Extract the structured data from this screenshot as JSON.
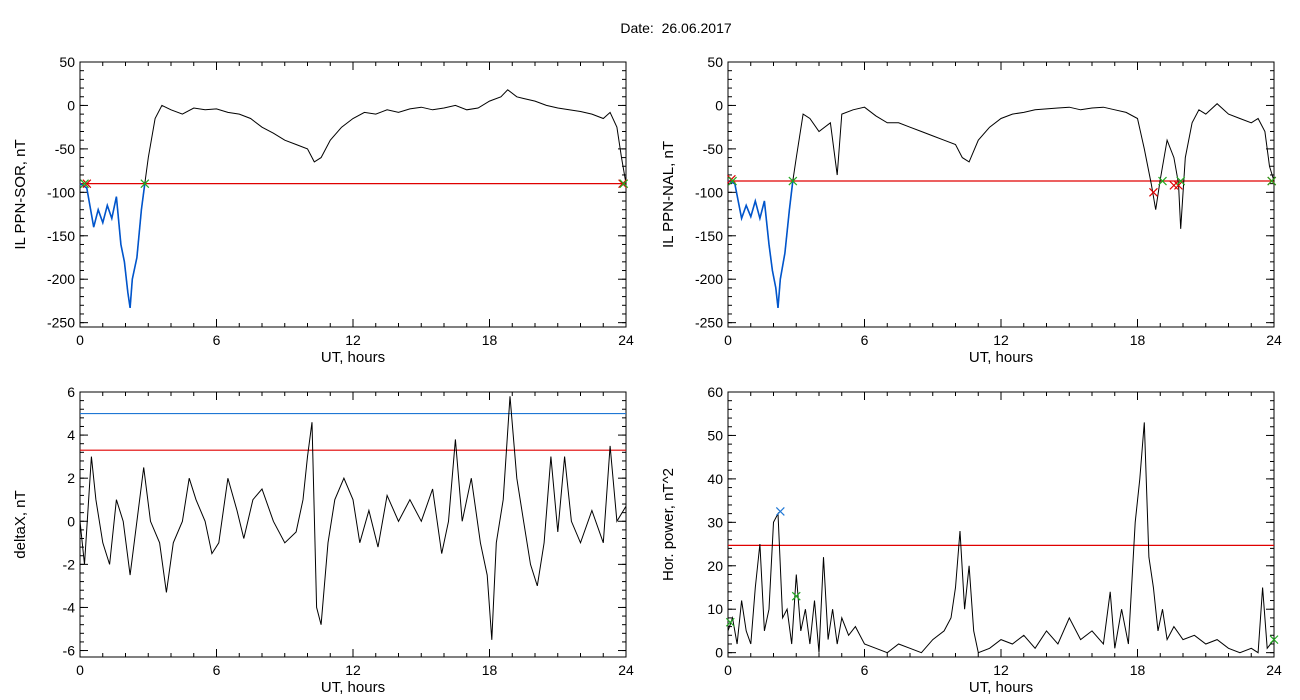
{
  "figure": {
    "title": "Date:  26.06.2017",
    "colors": {
      "data": "#000000",
      "interval": "#0055cc",
      "threshold_red": "#e00000",
      "threshold_blue": "#1f77d4",
      "marker_green": "#22aa22",
      "marker_red": "#dd0000"
    }
  },
  "chart_data": [
    {
      "id": "p1",
      "type": "line",
      "xlabel": "UT, hours",
      "ylabel": "IL PPN-SOR, nT",
      "xlim": [
        0,
        24
      ],
      "ylim": [
        -255,
        50
      ],
      "xticks": [
        0,
        6,
        12,
        18,
        24
      ],
      "yticks": [
        -250,
        -200,
        -150,
        -100,
        -50,
        0,
        50
      ],
      "threshold": -90,
      "series_main": {
        "x": [
          0,
          0.3,
          0.6,
          0.8,
          1.0,
          1.2,
          1.4,
          1.6,
          1.8,
          1.95,
          2.1,
          2.2,
          2.3,
          2.5,
          2.7,
          2.85,
          3.0,
          3.3,
          3.6,
          4,
          4.5,
          5,
          5.5,
          6,
          6.5,
          7,
          7.5,
          8,
          8.5,
          9,
          9.5,
          10,
          10.3,
          10.6,
          11,
          11.5,
          12,
          12.5,
          13,
          13.5,
          14,
          14.5,
          15,
          15.5,
          16,
          16.5,
          17,
          17.5,
          18,
          18.5,
          18.8,
          19.2,
          19.5,
          20,
          20.5,
          21,
          21.5,
          22,
          22.5,
          23,
          23.3,
          23.6,
          23.8,
          24
        ],
        "y": [
          -90,
          -95,
          -140,
          -120,
          -135,
          -115,
          -130,
          -105,
          -160,
          -180,
          -215,
          -233,
          -200,
          -175,
          -120,
          -90,
          -60,
          -15,
          0,
          -5,
          -10,
          -3,
          -5,
          -4,
          -8,
          -10,
          -15,
          -25,
          -32,
          -40,
          -45,
          -50,
          -65,
          -60,
          -40,
          -25,
          -15,
          -8,
          -10,
          -5,
          -8,
          -4,
          -2,
          -5,
          -3,
          0,
          -5,
          -3,
          5,
          10,
          18,
          10,
          8,
          5,
          0,
          -3,
          -5,
          -7,
          -10,
          -15,
          -8,
          -25,
          -60,
          -90
        ]
      },
      "series_interval": {
        "x": [
          0,
          0.3,
          0.6,
          0.8,
          1.0,
          1.2,
          1.4,
          1.6,
          1.8,
          1.95,
          2.1,
          2.2,
          2.3,
          2.5,
          2.7,
          2.85
        ],
        "y": [
          -90,
          -95,
          -140,
          -120,
          -135,
          -115,
          -130,
          -105,
          -160,
          -180,
          -215,
          -233,
          -200,
          -175,
          -120,
          -90
        ]
      },
      "markers_green": [
        {
          "x": 0.2,
          "y": -90
        },
        {
          "x": 2.85,
          "y": -90
        },
        {
          "x": 23.9,
          "y": -90
        }
      ],
      "markers_red": [
        {
          "x": 0.3,
          "y": -90
        },
        {
          "x": 23.85,
          "y": -90
        }
      ]
    },
    {
      "id": "p2",
      "type": "line",
      "xlabel": "UT, hours",
      "ylabel": "IL PPN-NAL, nT",
      "xlim": [
        0,
        24
      ],
      "ylim": [
        -255,
        50
      ],
      "xticks": [
        0,
        6,
        12,
        18,
        24
      ],
      "yticks": [
        -250,
        -200,
        -150,
        -100,
        -50,
        0,
        50
      ],
      "threshold": -87,
      "series_main": {
        "x": [
          0,
          0.3,
          0.6,
          0.8,
          1.0,
          1.2,
          1.4,
          1.6,
          1.8,
          1.95,
          2.1,
          2.2,
          2.3,
          2.5,
          2.7,
          2.85,
          3.0,
          3.3,
          3.6,
          4,
          4.5,
          4.8,
          5,
          5.5,
          6,
          6.5,
          7,
          7.5,
          8,
          8.5,
          9,
          9.5,
          10,
          10.3,
          10.6,
          11,
          11.5,
          12,
          12.5,
          13,
          13.5,
          14,
          14.5,
          15,
          15.5,
          16,
          16.5,
          17,
          17.5,
          18,
          18.3,
          18.6,
          18.8,
          19.0,
          19.3,
          19.6,
          19.8,
          19.9,
          20.1,
          20.4,
          20.7,
          21,
          21.5,
          22,
          22.5,
          23,
          23.3,
          23.6,
          23.8,
          24
        ],
        "y": [
          -87,
          -90,
          -130,
          -115,
          -128,
          -110,
          -130,
          -110,
          -160,
          -190,
          -210,
          -233,
          -200,
          -170,
          -120,
          -87,
          -60,
          -10,
          -15,
          -30,
          -20,
          -80,
          -10,
          -5,
          -2,
          -12,
          -20,
          -20,
          -25,
          -30,
          -35,
          -40,
          -45,
          -60,
          -65,
          -40,
          -25,
          -15,
          -10,
          -8,
          -5,
          -4,
          -3,
          -2,
          -5,
          -3,
          -2,
          -5,
          -8,
          -15,
          -50,
          -90,
          -120,
          -85,
          -40,
          -60,
          -90,
          -142,
          -60,
          -20,
          -5,
          -10,
          2,
          -10,
          -15,
          -20,
          -15,
          -30,
          -70,
          -87
        ]
      },
      "series_interval": {
        "x": [
          0,
          0.3,
          0.6,
          0.8,
          1.0,
          1.2,
          1.4,
          1.6,
          1.8,
          1.95,
          2.1,
          2.2,
          2.3,
          2.5,
          2.7,
          2.85
        ],
        "y": [
          -87,
          -90,
          -130,
          -115,
          -128,
          -110,
          -130,
          -110,
          -160,
          -190,
          -210,
          -233,
          -200,
          -170,
          -120,
          -87
        ]
      },
      "markers_green": [
        {
          "x": 0.2,
          "y": -87
        },
        {
          "x": 2.85,
          "y": -87
        },
        {
          "x": 19.1,
          "y": -87
        },
        {
          "x": 19.9,
          "y": -87
        },
        {
          "x": 23.9,
          "y": -87
        }
      ],
      "markers_red": [
        {
          "x": 0.15,
          "y": -85
        },
        {
          "x": 18.7,
          "y": -100
        },
        {
          "x": 19.6,
          "y": -92
        },
        {
          "x": 19.8,
          "y": -92
        },
        {
          "x": 23.9,
          "y": -87
        }
      ]
    },
    {
      "id": "p3",
      "type": "line",
      "xlabel": "UT, hours",
      "ylabel": "deltaX, nT",
      "xlim": [
        0,
        24
      ],
      "ylim": [
        -6.3,
        6.0
      ],
      "xticks": [
        0,
        6,
        12,
        18,
        24
      ],
      "yticks": [
        -6,
        -4,
        -2,
        0,
        2,
        4,
        6
      ],
      "threshold": 3.3,
      "threshold_blue": 5.0,
      "series_main": {
        "x": [
          0,
          0.2,
          0.5,
          0.7,
          1.0,
          1.3,
          1.6,
          1.9,
          2.2,
          2.5,
          2.8,
          3.1,
          3.5,
          3.8,
          4.1,
          4.5,
          4.8,
          5.1,
          5.5,
          5.8,
          6.1,
          6.5,
          6.9,
          7.2,
          7.6,
          8.0,
          8.5,
          9.0,
          9.5,
          9.8,
          10.0,
          10.2,
          10.4,
          10.6,
          10.9,
          11.2,
          11.6,
          12.0,
          12.3,
          12.7,
          13.1,
          13.5,
          14,
          14.5,
          15,
          15.5,
          15.9,
          16.2,
          16.5,
          16.8,
          17.2,
          17.6,
          17.9,
          18.1,
          18.3,
          18.6,
          18.9,
          19.2,
          19.5,
          19.8,
          20.1,
          20.4,
          20.7,
          21.0,
          21.3,
          21.6,
          22,
          22.5,
          23,
          23.3,
          23.6,
          24
        ],
        "y": [
          0,
          -2,
          3,
          1,
          -1,
          -2,
          1,
          0,
          -2.5,
          0,
          2.5,
          0,
          -1,
          -3.3,
          -1,
          0,
          2,
          1,
          0,
          -1.5,
          -1,
          2,
          0.5,
          -0.8,
          1,
          1.5,
          0,
          -1,
          -0.5,
          1,
          3,
          4.6,
          -4,
          -4.8,
          -1,
          1,
          2,
          1,
          -1,
          0.5,
          -1.2,
          1.2,
          0,
          1,
          0,
          1.5,
          -1.5,
          0,
          3.8,
          0,
          2,
          -1,
          -2.5,
          -5.5,
          -1,
          1,
          5.8,
          2,
          0,
          -2,
          -3,
          -1,
          3,
          -0.5,
          3,
          0,
          -1,
          0.5,
          -1,
          3.5,
          0,
          0.7
        ]
      },
      "series_interval": {
        "x": [],
        "y": []
      },
      "markers_green": [],
      "markers_red": []
    },
    {
      "id": "p4",
      "type": "line",
      "xlabel": "UT, hours",
      "ylabel": "Hor. power, nT^2",
      "xlim": [
        0,
        24
      ],
      "ylim": [
        -1,
        60
      ],
      "xticks": [
        0,
        6,
        12,
        18,
        24
      ],
      "yticks": [
        0,
        10,
        20,
        30,
        40,
        50,
        60
      ],
      "threshold": 24.7,
      "series_main": {
        "x": [
          0,
          0.2,
          0.4,
          0.6,
          0.8,
          1.0,
          1.2,
          1.4,
          1.6,
          1.8,
          2.0,
          2.2,
          2.4,
          2.6,
          2.8,
          3.0,
          3.2,
          3.4,
          3.6,
          3.8,
          4.0,
          4.2,
          4.4,
          4.6,
          4.8,
          5.0,
          5.3,
          5.6,
          6.0,
          6.5,
          7,
          7.5,
          8,
          8.5,
          9,
          9.5,
          9.8,
          10.0,
          10.2,
          10.4,
          10.6,
          10.8,
          11.0,
          11.5,
          12,
          12.5,
          13,
          13.5,
          14,
          14.5,
          15,
          15.5,
          16,
          16.5,
          16.8,
          17.0,
          17.3,
          17.6,
          17.9,
          18.1,
          18.3,
          18.5,
          18.7,
          18.9,
          19.1,
          19.3,
          19.6,
          20,
          20.5,
          21,
          21.5,
          22,
          22.5,
          23,
          23.3,
          23.5,
          23.7,
          24
        ],
        "y": [
          5,
          8,
          2,
          12,
          5,
          2,
          15,
          25,
          5,
          10,
          30,
          32,
          8,
          10,
          2,
          18,
          5,
          10,
          2,
          12,
          0,
          22,
          3,
          10,
          2,
          8,
          4,
          6,
          2,
          1,
          0,
          2,
          1,
          0,
          3,
          5,
          8,
          15,
          28,
          10,
          20,
          5,
          0,
          1,
          3,
          2,
          4,
          1,
          5,
          2,
          8,
          3,
          5,
          2,
          14,
          1,
          10,
          2,
          30,
          40,
          53,
          22,
          15,
          5,
          10,
          3,
          6,
          3,
          4,
          2,
          3,
          1,
          0,
          1,
          0,
          15,
          1,
          3
        ]
      },
      "series_interval": {
        "x": [],
        "y": []
      },
      "markers_green": [
        {
          "x": 0.1,
          "y": 7
        },
        {
          "x": 3.0,
          "y": 13
        },
        {
          "x": 24,
          "y": 3
        }
      ],
      "markers_blue": [
        {
          "x": 2.3,
          "y": 32.5
        }
      ]
    }
  ]
}
